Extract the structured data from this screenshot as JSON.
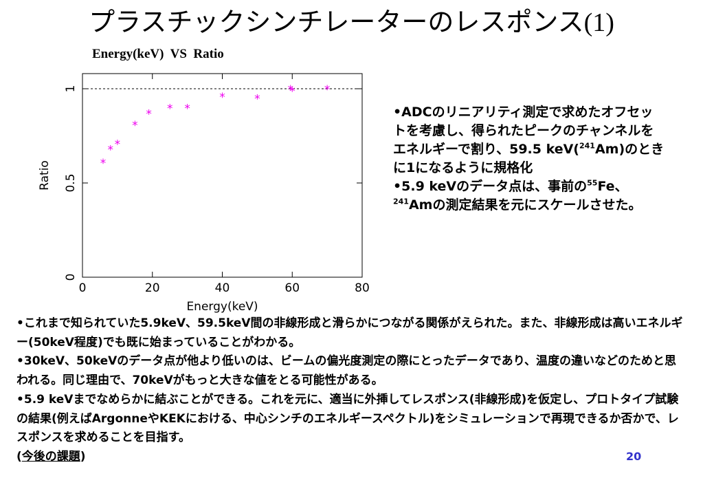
{
  "slide": {
    "title": "プラスチックシンチレーターのレスポンス",
    "title_suffix": "(1)",
    "page_number": "20"
  },
  "chart_data": {
    "type": "scatter",
    "title": "Energy(keV)  VS  Ratio",
    "xlabel": "Energy(keV)",
    "ylabel": "Ratio",
    "xlim": [
      0,
      80
    ],
    "ylim": [
      0,
      1.0
    ],
    "xticks": [
      "0",
      "20",
      "40",
      "60",
      "80"
    ],
    "yticks": [
      "0",
      "0.5",
      "1"
    ],
    "reference_line": 1.0,
    "marker": "*",
    "marker_color": "#ee00ee",
    "x": [
      5.9,
      8,
      10,
      15,
      19,
      25,
      30,
      40,
      50,
      59.5,
      60,
      70
    ],
    "y": [
      0.61,
      0.68,
      0.71,
      0.81,
      0.87,
      0.9,
      0.9,
      0.96,
      0.95,
      1.0,
      0.99,
      1.0
    ]
  },
  "side_note": {
    "bullet1_a": "•ADCのリニアリティ測定で求めたオフセットを考慮し、得られたピークのチャンネルをエネルギーで割り、59.5 keV(",
    "bullet1_sup": "241",
    "bullet1_b": "Am)のときに1になるように規格化",
    "bullet2_a": "•5.9 keVのデータ点は、事前の",
    "bullet2_sup1": "55",
    "bullet2_b": "Fe、",
    "bullet2_sup2": "241",
    "bullet2_c": "Amの測定結果を元にスケールさせた。"
  },
  "notes": {
    "bullet1": "•これまで知られていた5.9keV、59.5keV間の非線形成と滑らかにつながる関係がえられた。また、非線形成は高いエネルギー(50keV程度)でも既に始まっていることがわかる。",
    "bullet2": "•30keV、50keVのデータ点が他より低いのは、ビームの偏光度測定の際にとったデータであり、温度の違いなどのためと思われる。同じ理由で、70keVがもっと大きな値をとる可能性がある。",
    "bullet3": "•5.9 keVまでなめらかに結ぶことができる。これを元に、適当に外挿してレスポンス(非線形成)を仮定し、プロトタイプ試験の結果(例えばArgonneやKEKにおける、中心シンチのエネルギースペクトル)をシミュレーションで再現できるか否かで、レスポンスを求めることを目指す。",
    "future_open": "(",
    "future_label": "今後の課題",
    "future_close": ")"
  }
}
